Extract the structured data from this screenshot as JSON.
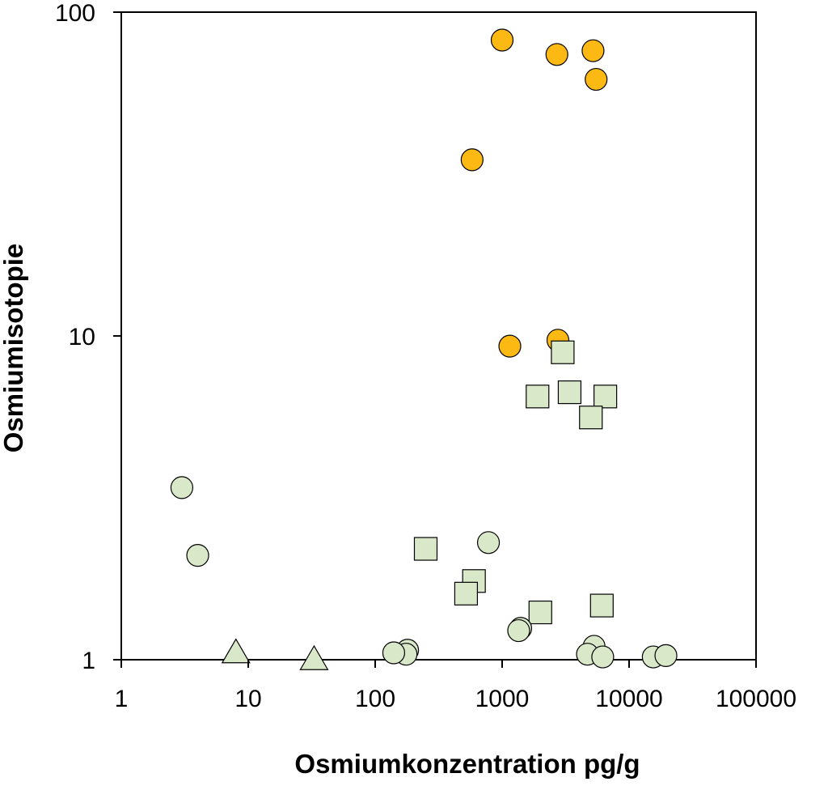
{
  "chart_data": {
    "type": "scatter",
    "title": "",
    "xlabel": "Osmiumkonzentration pg/g",
    "ylabel": "Osmiumisotopie",
    "x_scale": "log",
    "y_scale": "log",
    "xlim": [
      1,
      100000
    ],
    "ylim": [
      1,
      100
    ],
    "x_ticks": [
      {
        "value": 1,
        "label": "1"
      },
      {
        "value": 10,
        "label": "10"
      },
      {
        "value": 100,
        "label": "100"
      },
      {
        "value": 1000,
        "label": "1000"
      },
      {
        "value": 10000,
        "label": "10000"
      },
      {
        "value": 100000,
        "label": "100000"
      }
    ],
    "y_ticks": [
      {
        "value": 1,
        "label": "1"
      },
      {
        "value": 10,
        "label": "10"
      },
      {
        "value": 100,
        "label": "100"
      }
    ],
    "grid": false,
    "legend": "none",
    "series": [
      {
        "marker": "circle",
        "color": "#FDB913",
        "points": [
          {
            "x": 1000,
            "y": 82
          },
          {
            "x": 2700,
            "y": 74
          },
          {
            "x": 5200,
            "y": 76
          },
          {
            "x": 5500,
            "y": 62
          },
          {
            "x": 580,
            "y": 35
          },
          {
            "x": 1150,
            "y": 9.3
          },
          {
            "x": 2750,
            "y": 9.7
          }
        ]
      },
      {
        "marker": "square",
        "color": "#D9E8C8",
        "points": [
          {
            "x": 3000,
            "y": 8.9
          },
          {
            "x": 1900,
            "y": 6.5
          },
          {
            "x": 3400,
            "y": 6.7
          },
          {
            "x": 6500,
            "y": 6.5
          },
          {
            "x": 5000,
            "y": 5.6
          },
          {
            "x": 250,
            "y": 2.2
          },
          {
            "x": 600,
            "y": 1.75
          },
          {
            "x": 520,
            "y": 1.6
          },
          {
            "x": 2000,
            "y": 1.4
          },
          {
            "x": 6100,
            "y": 1.47
          }
        ]
      },
      {
        "marker": "circle",
        "color": "#D9E8C8",
        "points": [
          {
            "x": 3,
            "y": 3.4
          },
          {
            "x": 4,
            "y": 2.1
          },
          {
            "x": 780,
            "y": 2.3
          },
          {
            "x": 1400,
            "y": 1.25
          },
          {
            "x": 1350,
            "y": 1.23
          },
          {
            "x": 180,
            "y": 1.07
          },
          {
            "x": 175,
            "y": 1.04
          },
          {
            "x": 140,
            "y": 1.05
          },
          {
            "x": 5300,
            "y": 1.1
          },
          {
            "x": 4700,
            "y": 1.04
          },
          {
            "x": 6200,
            "y": 1.02
          },
          {
            "x": 15500,
            "y": 1.02
          },
          {
            "x": 19500,
            "y": 1.03
          }
        ]
      },
      {
        "marker": "triangle",
        "color": "#D9E8C8",
        "points": [
          {
            "x": 8,
            "y": 1.05
          },
          {
            "x": 33,
            "y": 1.0
          }
        ]
      }
    ]
  }
}
